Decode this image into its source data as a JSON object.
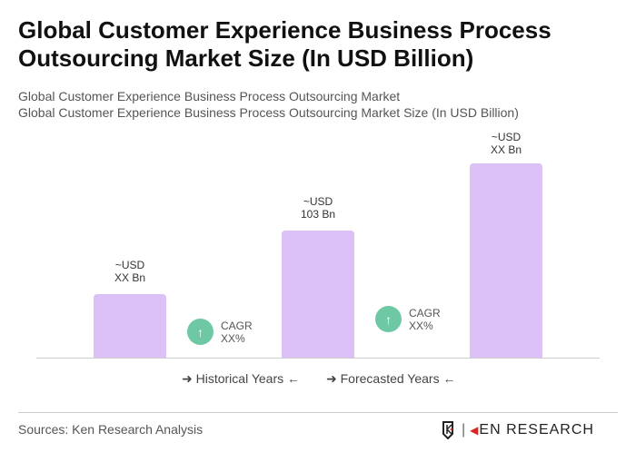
{
  "title": "Global Customer Experience Business Process Outsourcing Market Size (In USD Billion)",
  "subtitle1": "Global Customer Experience Business Process Outsourcing Market",
  "subtitle2": "Global Customer Experience Business Process Outsourcing Market Size (In USD Billion)",
  "chart_data": {
    "type": "bar",
    "bars": [
      {
        "label_line1": "~USD",
        "label_line2": "XX Bn"
      },
      {
        "label_line1": "~USD",
        "label_line2": "103 Bn",
        "value": 103
      },
      {
        "label_line1": "~USD",
        "label_line2": "XX Bn"
      }
    ],
    "cagr": [
      {
        "label": "CAGR",
        "value": "XX%"
      },
      {
        "label": "CAGR",
        "value": "XX%"
      }
    ],
    "legend": [
      "Historical Years",
      "Forecasted Years"
    ],
    "bar_color": "#dcc1f6",
    "cagr_color": "#6fc8a4"
  },
  "sources": "Sources: Ken Research Analysis",
  "logo": "KEN RESEARCH"
}
